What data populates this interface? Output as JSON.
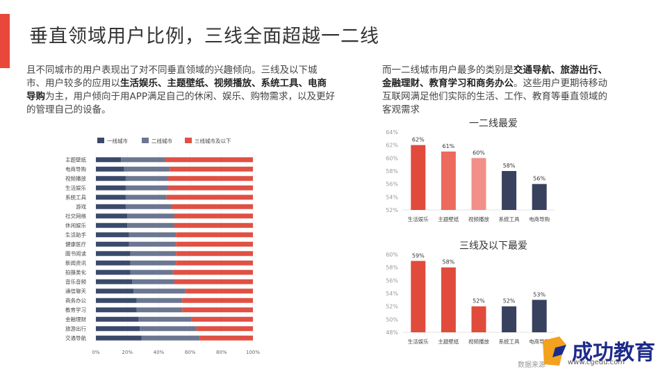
{
  "title": "垂直领域用户比例，三线全面超越一二线",
  "left_text": {
    "p1": "且不同城市的用户表现出了对不同垂直领域的兴趣倾向。三线及以下城市、用户较多的应用以",
    "b1": "生活娱乐、主题壁纸、视频播放、系统工具、电商导购",
    "p2": "为主，用户倾向于用APP满足自己的休闲、娱乐、购物需求，以及更好的管理自己的设备。"
  },
  "right_text": {
    "p1": "而一二线城市用户最多的类别是",
    "b1": "交通导航、旅游出行、金融理财、教育学习和商务办公",
    "p2": "。这些用户更期待移动互联网满足他们实际的生活、工作、教育等垂直领域的客观需求"
  },
  "colors": {
    "tier1": "#3b4a6b",
    "tier2": "#6b7791",
    "tier3": "#e05043",
    "red": "#e04b3c",
    "red_light": "#ec6a5e",
    "pink": "#f28f88",
    "navy": "#38425e"
  },
  "chart_data": [
    {
      "type": "bar",
      "orientation": "horizontal",
      "stacked": true,
      "title": "",
      "legend": [
        "一线城市",
        "二线城市",
        "三线城市及以下"
      ],
      "categories": [
        "主题壁纸",
        "电商导购",
        "视频播放",
        "生活娱乐",
        "系统工具",
        "游戏",
        "社交网络",
        "休闲娱乐",
        "生活助手",
        "健康医疗",
        "图书阅读",
        "新闻资讯",
        "拍摄美化",
        "音乐音频",
        "通信聊天",
        "商务办公",
        "教育学习",
        "金融理财",
        "旅游出行",
        "交通导航"
      ],
      "series": [
        {
          "name": "一线城市",
          "values": [
            16,
            18,
            19,
            19,
            19,
            19,
            20,
            20,
            21,
            21,
            22,
            22,
            22,
            23,
            24,
            26,
            26,
            27,
            28,
            29
          ]
        },
        {
          "name": "二线城市",
          "values": [
            28,
            29,
            27,
            27,
            26,
            29,
            30,
            30,
            30,
            30,
            29,
            29,
            27,
            27,
            33,
            29,
            29,
            34,
            36,
            37
          ]
        },
        {
          "name": "三线城市及以下",
          "values": [
            56,
            53,
            54,
            54,
            55,
            52,
            50,
            50,
            49,
            49,
            49,
            49,
            51,
            50,
            43,
            45,
            45,
            39,
            36,
            34
          ]
        }
      ],
      "xticks": [
        "0%",
        "20%",
        "40%",
        "60%",
        "80%",
        "100%"
      ],
      "xlim": [
        0,
        100
      ]
    },
    {
      "type": "bar",
      "title": "一二线最爱",
      "categories": [
        "生活娱乐",
        "主题壁纸",
        "视频播放",
        "系统工具",
        "电商导购"
      ],
      "values": [
        62,
        61,
        60,
        58,
        56
      ],
      "labels": [
        "62%",
        "61%",
        "60%",
        "58%",
        "56%"
      ],
      "yticks": [
        "52%",
        "54%",
        "56%",
        "58%",
        "60%",
        "62%",
        "64%"
      ],
      "ylim": [
        52,
        64
      ]
    },
    {
      "type": "bar",
      "title": "三线及以下最爱",
      "categories": [
        "生活娱乐",
        "主题壁纸",
        "视频播放",
        "系统工具",
        "电商导购"
      ],
      "values": [
        59,
        58,
        52,
        52,
        53
      ],
      "labels": [
        "59%",
        "58%",
        "52%",
        "52%",
        "53%"
      ],
      "yticks": [
        "48%",
        "50%",
        "52%",
        "54%",
        "56%",
        "58%",
        "60%"
      ],
      "ylim": [
        48,
        60
      ]
    }
  ],
  "footer": {
    "source": "数据来源"
  },
  "logo": {
    "name": "成功教育",
    "url": "www.cgedu.com"
  }
}
